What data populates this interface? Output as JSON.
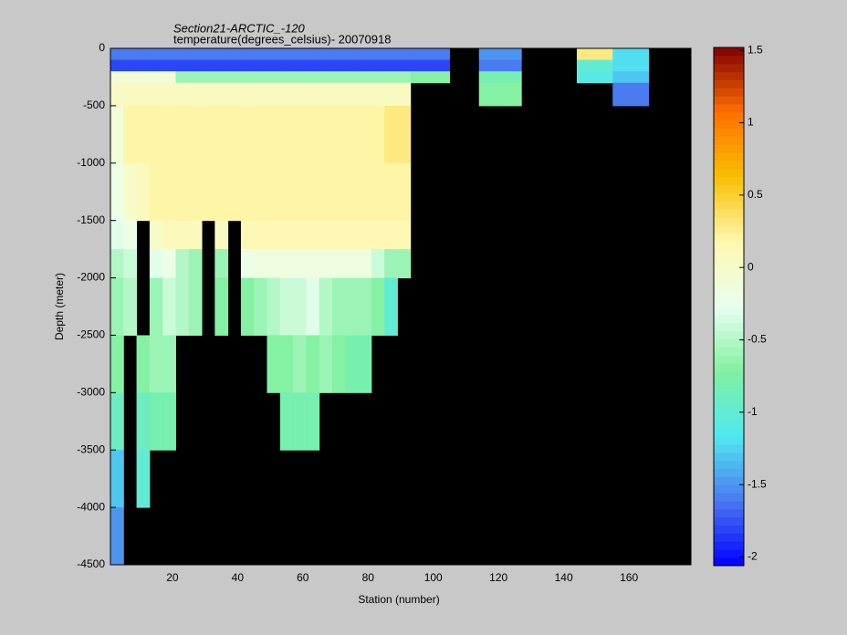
{
  "chart_data": {
    "type": "heatmap",
    "title": "Section21-ARCTIC_-120",
    "subtitle": "temperature(degrees_celsius)- 20070918",
    "xlabel": "Station (number)",
    "ylabel": "Depth (meter)",
    "background": "#000000",
    "xlim": [
      1,
      179
    ],
    "ylim": [
      -4500,
      0
    ],
    "xticks": [
      20,
      40,
      60,
      80,
      100,
      120,
      140,
      160
    ],
    "yticks": [
      0,
      -500,
      -1000,
      -1500,
      -2000,
      -2500,
      -3000,
      -3500,
      -4000,
      -4500
    ],
    "xbins": [
      1,
      5,
      9,
      13,
      17,
      21,
      25,
      29,
      33,
      37,
      41,
      45,
      49,
      53,
      57,
      61,
      65,
      69,
      73,
      77,
      81,
      85,
      89,
      93,
      105,
      114,
      127,
      144,
      155,
      166,
      179
    ],
    "ybins": [
      0,
      -100,
      -200,
      -300,
      -500,
      -1000,
      -1500,
      -1750,
      -2000,
      -2500,
      -3000,
      -3500,
      -4000,
      -4500
    ],
    "values": [
      [
        -1.6,
        -1.6,
        -1.6,
        -1.6,
        -1.6,
        -1.6,
        -1.6,
        -1.6,
        -1.6,
        -1.6,
        -1.6,
        -1.6,
        -1.6,
        -1.6,
        -1.6,
        -1.6,
        -1.6,
        -1.6,
        -1.6,
        -1.6,
        -1.6,
        -1.6,
        -1.6,
        -1.6,
        null,
        -1.5,
        null,
        0.3,
        -1.2,
        null
      ],
      [
        -1.8,
        -1.8,
        -1.8,
        -1.8,
        -1.8,
        -1.8,
        -1.8,
        -1.8,
        -1.8,
        -1.8,
        -1.8,
        -1.8,
        -1.8,
        -1.8,
        -1.8,
        -1.8,
        -1.8,
        -1.8,
        -1.8,
        -1.8,
        -1.8,
        -1.8,
        -1.8,
        -1.8,
        null,
        -1.6,
        null,
        -1.0,
        -1.2,
        null
      ],
      [
        -0.1,
        -0.1,
        -0.1,
        -0.1,
        -0.1,
        -0.6,
        -0.6,
        -0.6,
        -0.6,
        -0.6,
        -0.6,
        -0.6,
        -0.6,
        -0.6,
        -0.6,
        -0.6,
        -0.6,
        -0.6,
        -0.6,
        -0.6,
        -0.6,
        -0.6,
        -0.6,
        -0.7,
        null,
        -0.8,
        null,
        -1.1,
        -1.3,
        null
      ],
      [
        0.05,
        0.05,
        0.05,
        0.05,
        0.05,
        0.05,
        0.05,
        0.05,
        0.05,
        0.05,
        0.05,
        0.05,
        0.05,
        0.05,
        0.05,
        0.05,
        0.05,
        0.05,
        0.05,
        0.05,
        0.05,
        0.05,
        0.05,
        null,
        null,
        -0.7,
        null,
        null,
        -1.6,
        null
      ],
      [
        -0.1,
        0.2,
        0.2,
        0.2,
        0.2,
        0.2,
        0.2,
        0.2,
        0.2,
        0.2,
        0.2,
        0.2,
        0.2,
        0.2,
        0.2,
        0.2,
        0.2,
        0.2,
        0.2,
        0.2,
        0.2,
        0.3,
        0.3,
        null,
        null,
        null,
        null,
        null,
        null,
        null
      ],
      [
        -0.2,
        0.0,
        0.1,
        0.2,
        0.2,
        0.2,
        0.2,
        0.2,
        0.2,
        0.2,
        0.2,
        0.2,
        0.2,
        0.2,
        0.2,
        0.2,
        0.2,
        0.2,
        0.2,
        0.2,
        0.2,
        0.2,
        0.2,
        null,
        null,
        null,
        null,
        null,
        null,
        null
      ],
      [
        -0.3,
        -0.2,
        null,
        0.0,
        0.1,
        0.1,
        0.1,
        null,
        0.05,
        null,
        0.15,
        0.15,
        0.15,
        0.15,
        0.15,
        0.15,
        0.15,
        0.15,
        0.15,
        0.15,
        0.15,
        0.15,
        0.15,
        null,
        null,
        null,
        null,
        null,
        null,
        null
      ],
      [
        -0.5,
        -0.4,
        null,
        -0.3,
        -0.2,
        -0.5,
        -0.6,
        null,
        -0.6,
        null,
        -0.2,
        -0.15,
        -0.15,
        -0.15,
        -0.15,
        -0.15,
        -0.15,
        -0.15,
        -0.15,
        -0.15,
        -0.4,
        -0.6,
        -0.6,
        null,
        null,
        null,
        null,
        null,
        null,
        null
      ],
      [
        -0.6,
        -0.5,
        null,
        -0.6,
        -0.4,
        -0.5,
        -0.6,
        null,
        -0.7,
        null,
        -0.7,
        -0.6,
        -0.5,
        -0.4,
        -0.4,
        -0.3,
        -0.5,
        -0.6,
        -0.6,
        -0.6,
        -0.7,
        -1.0,
        null,
        null,
        null,
        null,
        null,
        null,
        null,
        null
      ],
      [
        -0.7,
        null,
        -0.7,
        -0.6,
        -0.6,
        null,
        null,
        null,
        null,
        null,
        null,
        null,
        -0.7,
        -0.7,
        -0.6,
        -0.7,
        -0.6,
        -0.7,
        -0.8,
        -0.8,
        null,
        null,
        null,
        null,
        null,
        null,
        null,
        null,
        null,
        null
      ],
      [
        -0.9,
        null,
        -0.9,
        -0.8,
        -0.8,
        null,
        null,
        null,
        null,
        null,
        null,
        null,
        null,
        -0.8,
        -0.8,
        -0.8,
        null,
        null,
        null,
        null,
        null,
        null,
        null,
        null,
        null,
        null,
        null,
        null,
        null,
        null
      ],
      [
        -1.3,
        null,
        -1.0,
        null,
        null,
        null,
        null,
        null,
        null,
        null,
        null,
        null,
        null,
        null,
        null,
        null,
        null,
        null,
        null,
        null,
        null,
        null,
        null,
        null,
        null,
        null,
        null,
        null,
        null,
        null
      ],
      [
        -1.5,
        null,
        null,
        null,
        null,
        null,
        null,
        null,
        null,
        null,
        null,
        null,
        null,
        null,
        null,
        null,
        null,
        null,
        null,
        null,
        null,
        null,
        null,
        null,
        null,
        null,
        null,
        null,
        null,
        null
      ]
    ],
    "colorbar": {
      "clim": [
        -2.06,
        1.52
      ],
      "ticks": [
        1.5,
        1,
        0.5,
        0,
        -0.5,
        -1,
        -1.5,
        -2
      ],
      "colormap": [
        "#0000ff",
        "#4a78f0",
        "#50e8f0",
        "#80f0a0",
        "#e8fff0",
        "#fff8b0",
        "#f8c000",
        "#ff7000",
        "#800000"
      ]
    }
  }
}
